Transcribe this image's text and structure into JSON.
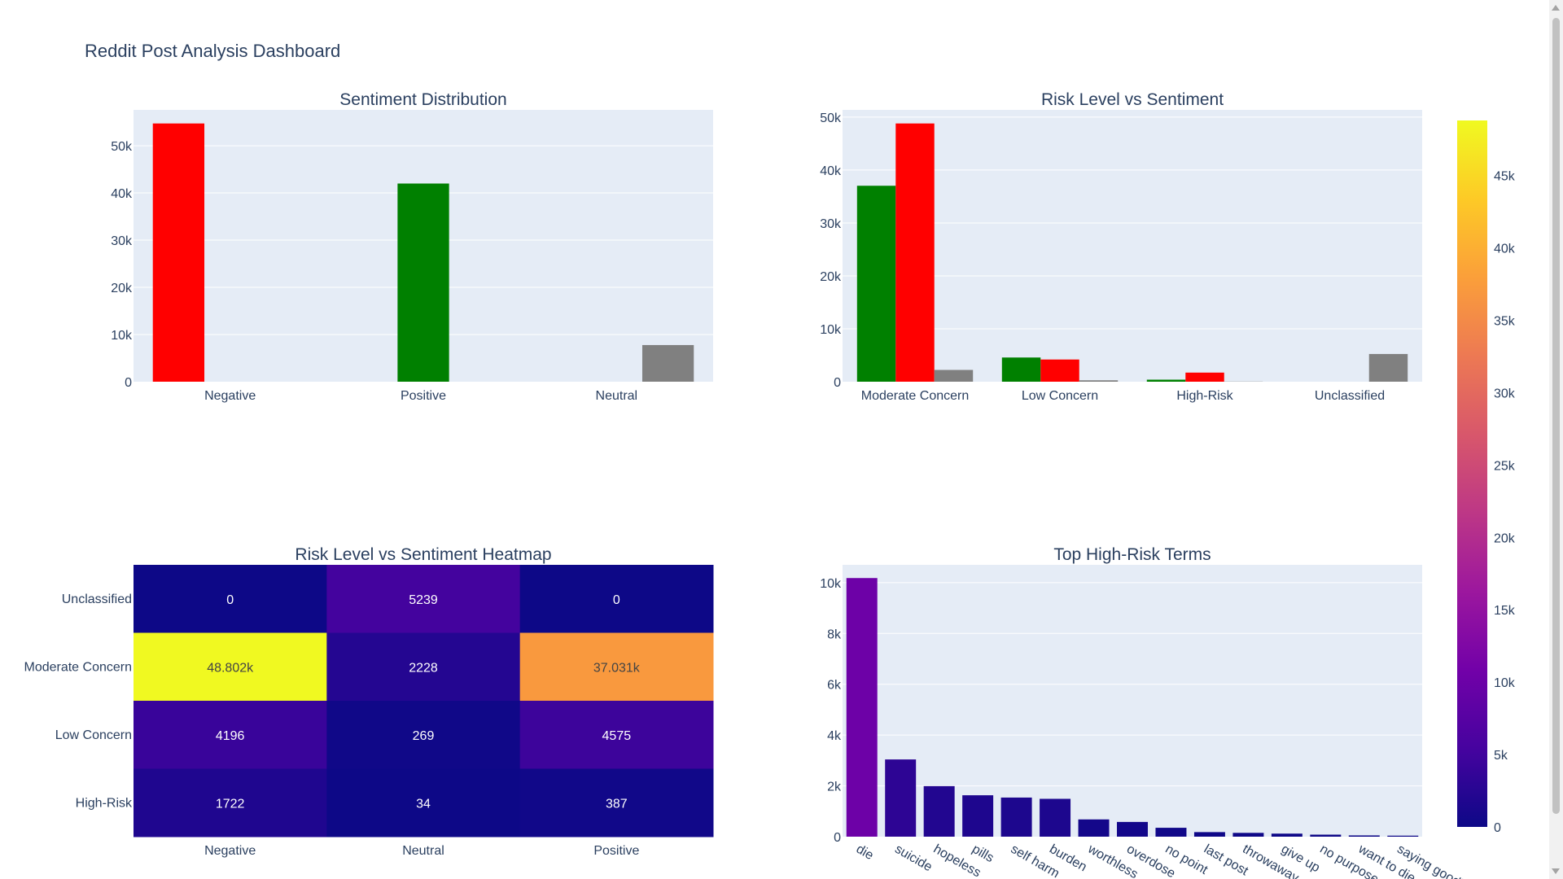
{
  "page": {
    "title": "Reddit Post Analysis Dashboard"
  },
  "colors": {
    "plot_bg": "#e5ecf6",
    "grid": "#ffffff",
    "text": "#2a3f5f",
    "negative": "#ff0000",
    "positive": "#008000",
    "neutral": "#808080",
    "plasma": [
      "#0d0887",
      "#46039f",
      "#7201a8",
      "#9c179e",
      "#bd3786",
      "#d8576b",
      "#ed7953",
      "#fb9f3a",
      "#fdca26",
      "#f0f921"
    ]
  },
  "chart_data": [
    {
      "id": "sentiment",
      "type": "bar",
      "title": "Sentiment Distribution",
      "categories": [
        "Negative",
        "Positive",
        "Neutral"
      ],
      "series": [
        {
          "values": [
            54720,
            0,
            0
          ],
          "color": "#ff0000"
        },
        {
          "values": [
            0,
            41993,
            0
          ],
          "color": "#008000"
        },
        {
          "values": [
            0,
            0,
            7770
          ],
          "color": "#808080"
        }
      ],
      "ylim": [
        0,
        57600
      ],
      "yticks": [
        0,
        10000,
        20000,
        30000,
        40000,
        50000
      ],
      "ytick_labels": [
        "0",
        "10k",
        "20k",
        "30k",
        "40k",
        "50k"
      ],
      "grid": true
    },
    {
      "id": "risk",
      "type": "bar",
      "title": "Risk Level vs Sentiment",
      "categories": [
        "Moderate Concern",
        "Low Concern",
        "High-Risk",
        "Unclassified"
      ],
      "series": [
        {
          "values": [
            37031,
            4575,
            387,
            0
          ],
          "color": "#008000"
        },
        {
          "values": [
            48802,
            4196,
            1722,
            0
          ],
          "color": "#ff0000"
        },
        {
          "values": [
            2228,
            269,
            34,
            5239
          ],
          "color": "#808080"
        }
      ],
      "ylim": [
        0,
        51370
      ],
      "yticks": [
        0,
        10000,
        20000,
        30000,
        40000,
        50000
      ],
      "ytick_labels": [
        "0",
        "10k",
        "20k",
        "30k",
        "40k",
        "50k"
      ],
      "grid": true
    },
    {
      "id": "heatmap",
      "type": "heatmap",
      "title": "Risk Level vs Sentiment Heatmap",
      "x": [
        "Negative",
        "Neutral",
        "Positive"
      ],
      "y": [
        "Unclassified",
        "Moderate Concern",
        "Low Concern",
        "High-Risk"
      ],
      "z": [
        [
          0,
          5239,
          0
        ],
        [
          48802,
          2228,
          37031
        ],
        [
          4196,
          269,
          4575
        ],
        [
          1722,
          34,
          387
        ]
      ],
      "cell_labels": [
        [
          "0",
          "5239",
          "0"
        ],
        [
          "48.802k",
          "2228",
          "37.031k"
        ],
        [
          "4196",
          "269",
          "4575"
        ],
        [
          "1722",
          "34",
          "387"
        ]
      ],
      "zlim": [
        0,
        48802
      ],
      "colorbar_ticks": [
        0,
        5000,
        10000,
        15000,
        20000,
        25000,
        30000,
        35000,
        40000,
        45000
      ],
      "colorbar_labels": [
        "0",
        "5k",
        "10k",
        "15k",
        "20k",
        "25k",
        "30k",
        "35k",
        "40k",
        "45k"
      ]
    },
    {
      "id": "terms",
      "type": "bar",
      "title": "Top High-Risk Terms",
      "categories": [
        "die",
        "suicide",
        "hopeless",
        "pills",
        "self harm",
        "burden",
        "worthless",
        "overdose",
        "no point",
        "last post",
        "throwaway",
        "give up",
        "no purpose",
        "want to die",
        "saying goodbye"
      ],
      "values": [
        10180,
        3040,
        1990,
        1630,
        1540,
        1490,
        680,
        580,
        350,
        180,
        150,
        120,
        80,
        50,
        40
      ],
      "ylim": [
        0,
        10700
      ],
      "yticks": [
        0,
        2000,
        4000,
        6000,
        8000,
        10000
      ],
      "ytick_labels": [
        "0",
        "2k",
        "4k",
        "6k",
        "8k",
        "10k"
      ],
      "color_scale": "plasma",
      "grid": true
    }
  ]
}
